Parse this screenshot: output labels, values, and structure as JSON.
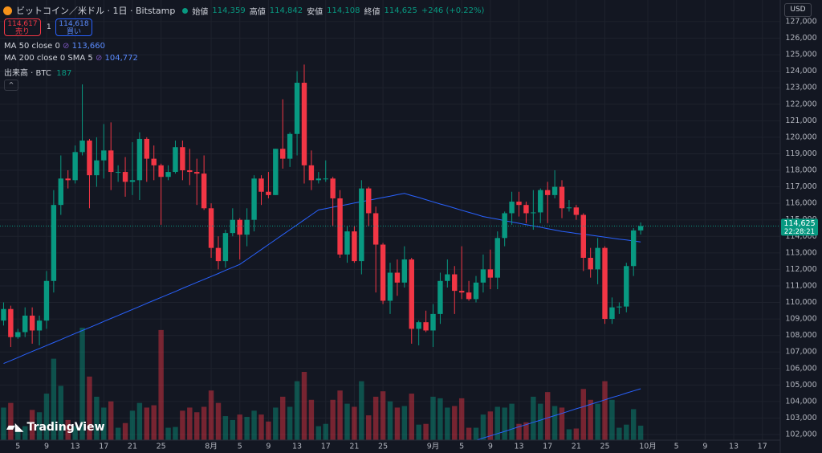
{
  "chart_data": {
    "type": "candlestick",
    "header": {
      "symbol": "ビットコイン／米ドル · 1日 · Bitstamp",
      "open_label": "始値",
      "open": "114,359",
      "high_label": "高値",
      "high": "114,842",
      "low_label": "安値",
      "low": "114,108",
      "close_label": "終値",
      "close": "114,625",
      "change": "+246 (+0.22%)"
    },
    "sell": {
      "price": "114,617",
      "label": "売り"
    },
    "spread": "1",
    "buy": {
      "price": "114,618",
      "label": "買い"
    },
    "currency": "USD",
    "logo": "TradingView",
    "candles": [
      [
        108900,
        110000,
        108600,
        109600
      ],
      [
        109600,
        109800,
        107300,
        107900
      ],
      [
        107900,
        108400,
        107800,
        108200
      ],
      [
        108200,
        109700,
        107900,
        109200
      ],
      [
        109200,
        109700,
        107500,
        108300
      ],
      [
        108300,
        109200,
        107400,
        108900
      ],
      [
        108900,
        111900,
        108400,
        111300
      ],
      [
        111300,
        116800,
        110600,
        115900
      ],
      [
        115900,
        118900,
        115300,
        117500
      ],
      [
        117500,
        118000,
        116900,
        117400
      ],
      [
        117400,
        119500,
        117200,
        119100
      ],
      [
        119100,
        123200,
        118900,
        119800
      ],
      [
        119800,
        119900,
        115700,
        117700
      ],
      [
        117700,
        120000,
        117000,
        118600
      ],
      [
        118600,
        120800,
        117500,
        119200
      ],
      [
        119200,
        120900,
        116800,
        117900
      ],
      [
        117900,
        118300,
        117300,
        117900
      ],
      [
        117900,
        118800,
        116400,
        117300
      ],
      [
        117300,
        119700,
        116500,
        117400
      ],
      [
        117400,
        120300,
        116200,
        119900
      ],
      [
        119900,
        120000,
        117300,
        118700
      ],
      [
        118700,
        119500,
        117400,
        118300
      ],
      [
        118300,
        118400,
        114700,
        117600
      ],
      [
        117600,
        118300,
        117400,
        117900
      ],
      [
        117900,
        119800,
        117800,
        119400
      ],
      [
        119400,
        119800,
        117400,
        118000
      ],
      [
        118000,
        119300,
        117100,
        117900
      ],
      [
        117900,
        118700,
        115900,
        117800
      ],
      [
        117800,
        118900,
        115600,
        115700
      ],
      [
        115700,
        116000,
        112700,
        113300
      ],
      [
        113300,
        114000,
        112000,
        112500
      ],
      [
        112500,
        114400,
        112100,
        114200
      ],
      [
        114200,
        115700,
        114000,
        115000
      ],
      [
        115000,
        115100,
        112600,
        114100
      ],
      [
        114100,
        115700,
        113400,
        115000
      ],
      [
        115000,
        117700,
        114300,
        117500
      ],
      [
        117500,
        117700,
        115900,
        116700
      ],
      [
        116700,
        117900,
        116300,
        116500
      ],
      [
        116500,
        119300,
        116500,
        119300
      ],
      [
        119300,
        122300,
        118100,
        118700
      ],
      [
        118700,
        120300,
        118200,
        120200
      ],
      [
        120200,
        124000,
        118900,
        123300
      ],
      [
        123300,
        124400,
        117200,
        118300
      ],
      [
        118300,
        119200,
        116800,
        117400
      ],
      [
        117400,
        117900,
        117200,
        117500
      ],
      [
        117500,
        118600,
        117300,
        117500
      ],
      [
        117500,
        117600,
        114600,
        116300
      ],
      [
        116300,
        116800,
        112700,
        112900
      ],
      [
        112900,
        114600,
        112400,
        114300
      ],
      [
        114300,
        114600,
        112400,
        112500
      ],
      [
        112500,
        117400,
        111700,
        116900
      ],
      [
        116900,
        117000,
        114600,
        115400
      ],
      [
        115400,
        115800,
        110600,
        113500
      ],
      [
        113500,
        113600,
        109900,
        110100
      ],
      [
        110100,
        112400,
        109300,
        111800
      ],
      [
        111800,
        112600,
        110400,
        111200
      ],
      [
        111200,
        113400,
        110900,
        112600
      ],
      [
        112600,
        112700,
        107500,
        108400
      ],
      [
        108400,
        108900,
        107400,
        108800
      ],
      [
        108800,
        109500,
        108200,
        108300
      ],
      [
        108300,
        109900,
        107300,
        109300
      ],
      [
        109300,
        111800,
        108700,
        111300
      ],
      [
        111300,
        112600,
        110900,
        111700
      ],
      [
        111700,
        112200,
        109300,
        110700
      ],
      [
        110700,
        113400,
        110200,
        110600
      ],
      [
        110600,
        111300,
        110100,
        110200
      ],
      [
        110200,
        111600,
        110000,
        111200
      ],
      [
        111200,
        112900,
        110600,
        112000
      ],
      [
        112000,
        113200,
        110800,
        111500
      ],
      [
        111500,
        114300,
        110800,
        113900
      ],
      [
        113900,
        115500,
        113400,
        115400
      ],
      [
        115400,
        116700,
        114700,
        116100
      ],
      [
        116100,
        116700,
        115200,
        115900
      ],
      [
        115900,
        116100,
        114800,
        115400
      ],
      [
        115400,
        116800,
        114400,
        115450
      ],
      [
        115450,
        116900,
        114800,
        116800
      ],
      [
        116800,
        117300,
        114800,
        116500
      ],
      [
        116500,
        118000,
        116300,
        117000
      ],
      [
        117000,
        117400,
        115100,
        115700
      ],
      [
        115700,
        116200,
        115500,
        115750
      ],
      [
        115750,
        115900,
        115000,
        115300
      ],
      [
        115300,
        115400,
        111900,
        112700
      ],
      [
        112700,
        113300,
        111500,
        112000
      ],
      [
        112000,
        113900,
        111100,
        113300
      ],
      [
        113300,
        113400,
        108700,
        109000
      ],
      [
        109000,
        110300,
        108700,
        109700
      ],
      [
        109700,
        110000,
        109300,
        109750
      ],
      [
        109750,
        112400,
        109400,
        112200
      ],
      [
        112200,
        114500,
        111600,
        114359
      ],
      [
        114359,
        114842,
        114108,
        114625
      ]
    ],
    "up_color": "#089981",
    "down_color": "#f23645",
    "volume": {
      "name": "出来高 · BTC",
      "values": [
        420,
        480,
        150,
        180,
        390,
        360,
        600,
        1050,
        700,
        260,
        180,
        1450,
        820,
        560,
        420,
        500,
        160,
        220,
        380,
        480,
        420,
        450,
        1420,
        160,
        170,
        380,
        420,
        360,
        430,
        640,
        480,
        310,
        260,
        330,
        300,
        380,
        330,
        240,
        420,
        560,
        430,
        760,
        880,
        520,
        180,
        210,
        520,
        640,
        470,
        430,
        760,
        320,
        560,
        630,
        500,
        420,
        440,
        600,
        200,
        210,
        560,
        540,
        420,
        440,
        540,
        160,
        160,
        330,
        370,
        430,
        420,
        470,
        210,
        230,
        560,
        470,
        620,
        440,
        420,
        140,
        150,
        660,
        520,
        470,
        760,
        520,
        160,
        200,
        400,
        187
      ]
    },
    "moving_averages": [
      {
        "name": "MA 50 close 0",
        "color": "#2962ff",
        "value_label": "113,660",
        "values": [
          106300,
          106480,
          106660,
          106850,
          107030,
          107210,
          107390,
          107570,
          107750,
          107940,
          108120,
          108300,
          108480,
          108660,
          108850,
          109030,
          109210,
          109390,
          109570,
          109750,
          109940,
          110120,
          110300,
          110480,
          110660,
          110850,
          111030,
          111210,
          111390,
          111570,
          111750,
          111940,
          112120,
          112300,
          112600,
          112900,
          113200,
          113500,
          113800,
          114100,
          114400,
          114700,
          115000,
          115300,
          115600,
          115680,
          115770,
          115850,
          115930,
          116020,
          116100,
          116180,
          116270,
          116350,
          116430,
          116520,
          116600,
          116470,
          116350,
          116220,
          116090,
          115960,
          115840,
          115710,
          115580,
          115450,
          115330,
          115200,
          115120,
          115040,
          114950,
          114870,
          114790,
          114710,
          114630,
          114550,
          114460,
          114380,
          114300,
          114240,
          114180,
          114130,
          114070,
          114010,
          113950,
          113890,
          113830,
          113780,
          113720,
          113660
        ]
      },
      {
        "name": "MA 200 close 0 SMA 5",
        "color": "#2962ff",
        "value_label": "104,772",
        "values": [
          null,
          null,
          null,
          null,
          null,
          null,
          null,
          null,
          null,
          null,
          null,
          null,
          null,
          null,
          null,
          null,
          null,
          null,
          null,
          null,
          null,
          null,
          null,
          null,
          null,
          null,
          null,
          null,
          null,
          null,
          null,
          null,
          null,
          null,
          null,
          null,
          null,
          null,
          null,
          null,
          null,
          null,
          null,
          null,
          null,
          null,
          null,
          null,
          null,
          null,
          null,
          null,
          null,
          null,
          null,
          null,
          null,
          null,
          null,
          null,
          null,
          null,
          null,
          null,
          null,
          null,
          101650,
          101790,
          101920,
          102060,
          102190,
          102330,
          102470,
          102600,
          102740,
          102870,
          103010,
          103150,
          103280,
          103420,
          103560,
          103690,
          103830,
          103960,
          104100,
          104240,
          104370,
          104510,
          104640,
          104772
        ]
      }
    ],
    "last_price": {
      "value": 114625,
      "label": "114,625",
      "countdown": "22:28:21"
    },
    "ylim": [
      101660,
      128310
    ],
    "xlim": [
      -0.5,
      108.5
    ],
    "yticks": [
      {
        "value": 102000,
        "label": "102,000"
      },
      {
        "value": 103000,
        "label": "103,000"
      },
      {
        "value": 104000,
        "label": "104,000"
      },
      {
        "value": 105000,
        "label": "105,000"
      },
      {
        "value": 106000,
        "label": "106,000"
      },
      {
        "value": 107000,
        "label": "107,000"
      },
      {
        "value": 108000,
        "label": "108,000"
      },
      {
        "value": 109000,
        "label": "109,000"
      },
      {
        "value": 110000,
        "label": "110,000"
      },
      {
        "value": 111000,
        "label": "111,000"
      },
      {
        "value": 112000,
        "label": "112,000"
      },
      {
        "value": 113000,
        "label": "113,000"
      },
      {
        "value": 114000,
        "label": "114,000"
      },
      {
        "value": 115000,
        "label": "115,000"
      },
      {
        "value": 116000,
        "label": "116,000"
      },
      {
        "value": 117000,
        "label": "117,000"
      },
      {
        "value": 118000,
        "label": "118,000"
      },
      {
        "value": 119000,
        "label": "119,000"
      },
      {
        "value": 120000,
        "label": "120,000"
      },
      {
        "value": 121000,
        "label": "121,000"
      },
      {
        "value": 122000,
        "label": "122,000"
      },
      {
        "value": 123000,
        "label": "123,000"
      },
      {
        "value": 124000,
        "label": "124,000"
      },
      {
        "value": 125000,
        "label": "125,000"
      },
      {
        "value": 126000,
        "label": "126,000"
      },
      {
        "value": 127000,
        "label": "127,000"
      }
    ],
    "xticks": [
      {
        "value": 2,
        "label": "5"
      },
      {
        "value": 6,
        "label": "9"
      },
      {
        "value": 10,
        "label": "13"
      },
      {
        "value": 14,
        "label": "17"
      },
      {
        "value": 18,
        "label": "21"
      },
      {
        "value": 22,
        "label": "25"
      },
      {
        "value": 29,
        "label": "8月"
      },
      {
        "value": 33,
        "label": "5"
      },
      {
        "value": 37,
        "label": "9"
      },
      {
        "value": 41,
        "label": "13"
      },
      {
        "value": 45,
        "label": "17"
      },
      {
        "value": 49,
        "label": "21"
      },
      {
        "value": 53,
        "label": "25"
      },
      {
        "value": 60,
        "label": "9月"
      },
      {
        "value": 64,
        "label": "5"
      },
      {
        "value": 68,
        "label": "9"
      },
      {
        "value": 72,
        "label": "13"
      },
      {
        "value": 76,
        "label": "17"
      },
      {
        "value": 80,
        "label": "21"
      },
      {
        "value": 84,
        "label": "25"
      },
      {
        "value": 90,
        "label": "10月"
      },
      {
        "value": 94,
        "label": "5"
      },
      {
        "value": 98,
        "label": "9"
      },
      {
        "value": 102,
        "label": "13"
      },
      {
        "value": 106,
        "label": "17"
      }
    ],
    "grid": true
  }
}
